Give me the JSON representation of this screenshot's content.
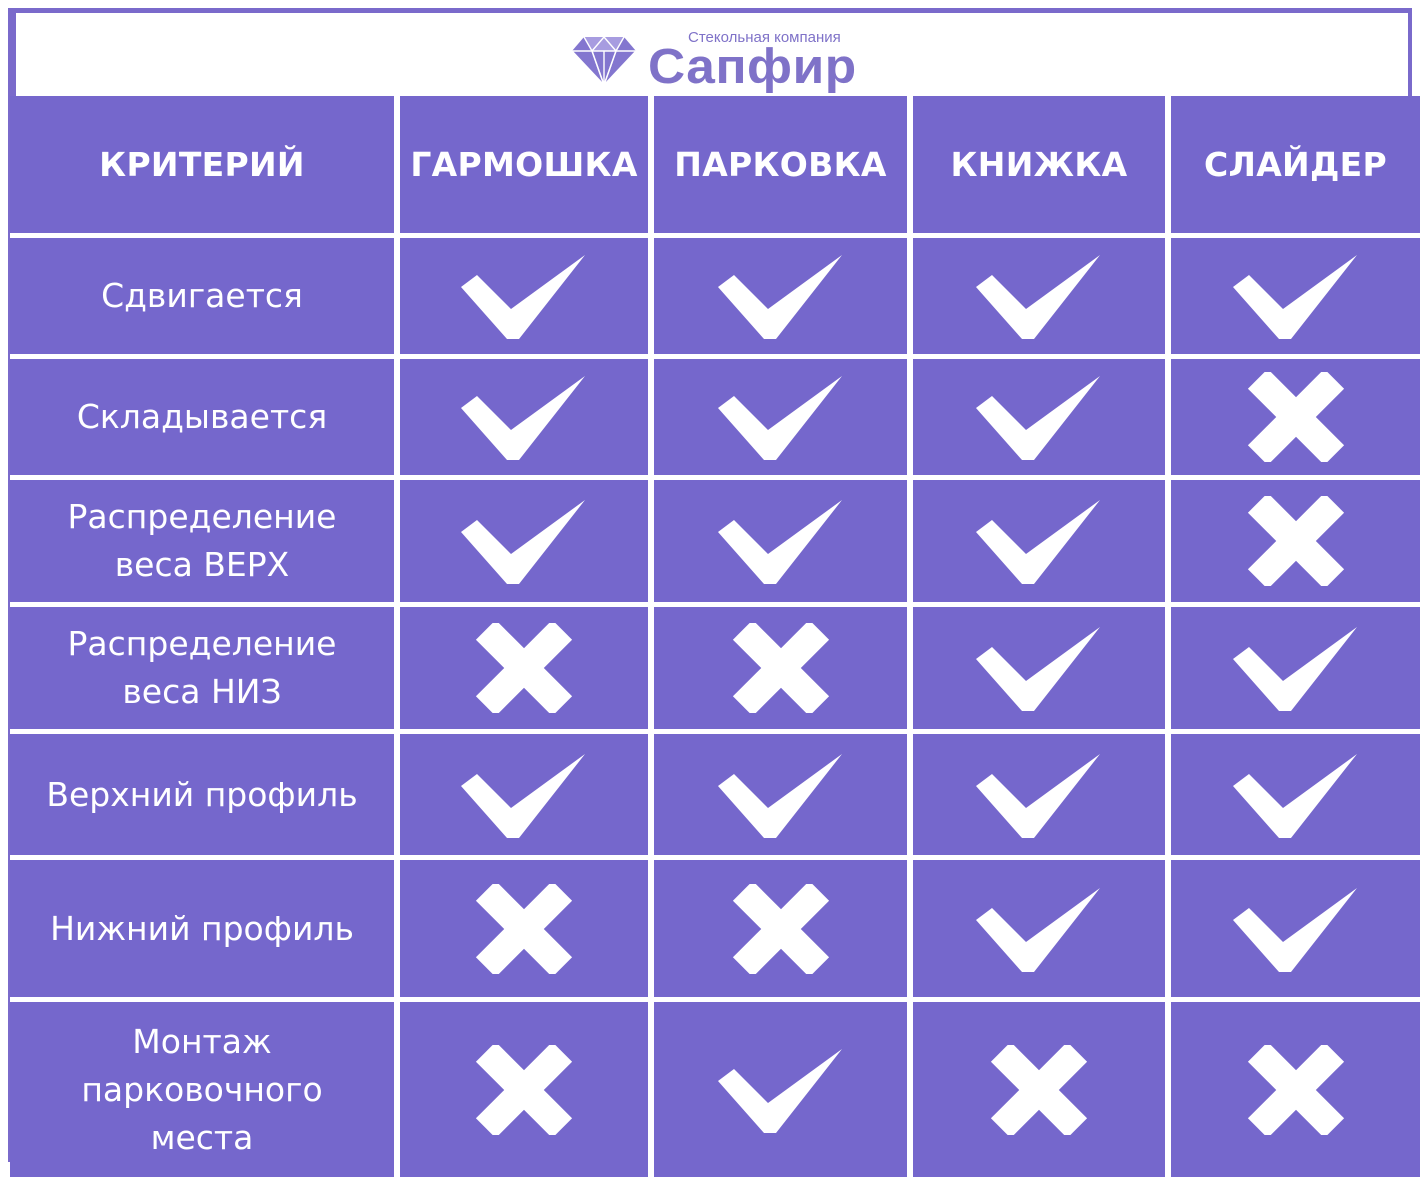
{
  "brand": {
    "subtitle": "Стекольная компания",
    "name": "Сапфир",
    "color": "#7f72c8"
  },
  "colors": {
    "cell_background": "#7567cc",
    "text": "#ffffff"
  },
  "table": {
    "headers": [
      "КРИТЕРИЙ",
      "ГАРМОШКА",
      "ПАРКОВКА",
      "КНИЖКА",
      "СЛАЙДЕР"
    ],
    "rows": [
      {
        "criterion": "Сдвигается",
        "values": [
          "check",
          "check",
          "check",
          "check"
        ]
      },
      {
        "criterion": "Складывается",
        "values": [
          "check",
          "check",
          "check",
          "cross"
        ]
      },
      {
        "criterion": "Распределение веса ВЕРХ",
        "values": [
          "check",
          "check",
          "check",
          "cross"
        ]
      },
      {
        "criterion": "Распределение веса НИЗ",
        "values": [
          "cross",
          "cross",
          "check",
          "check"
        ]
      },
      {
        "criterion": "Верхний профиль",
        "values": [
          "check",
          "check",
          "check",
          "check"
        ]
      },
      {
        "criterion": "Нижний профиль",
        "values": [
          "cross",
          "cross",
          "check",
          "check"
        ]
      },
      {
        "criterion": "Монтаж парковочного места",
        "values": [
          "cross",
          "check",
          "cross",
          "cross"
        ]
      }
    ]
  },
  "icons": {
    "check": "check-icon",
    "cross": "cross-icon",
    "logo": "diamond-icon"
  }
}
